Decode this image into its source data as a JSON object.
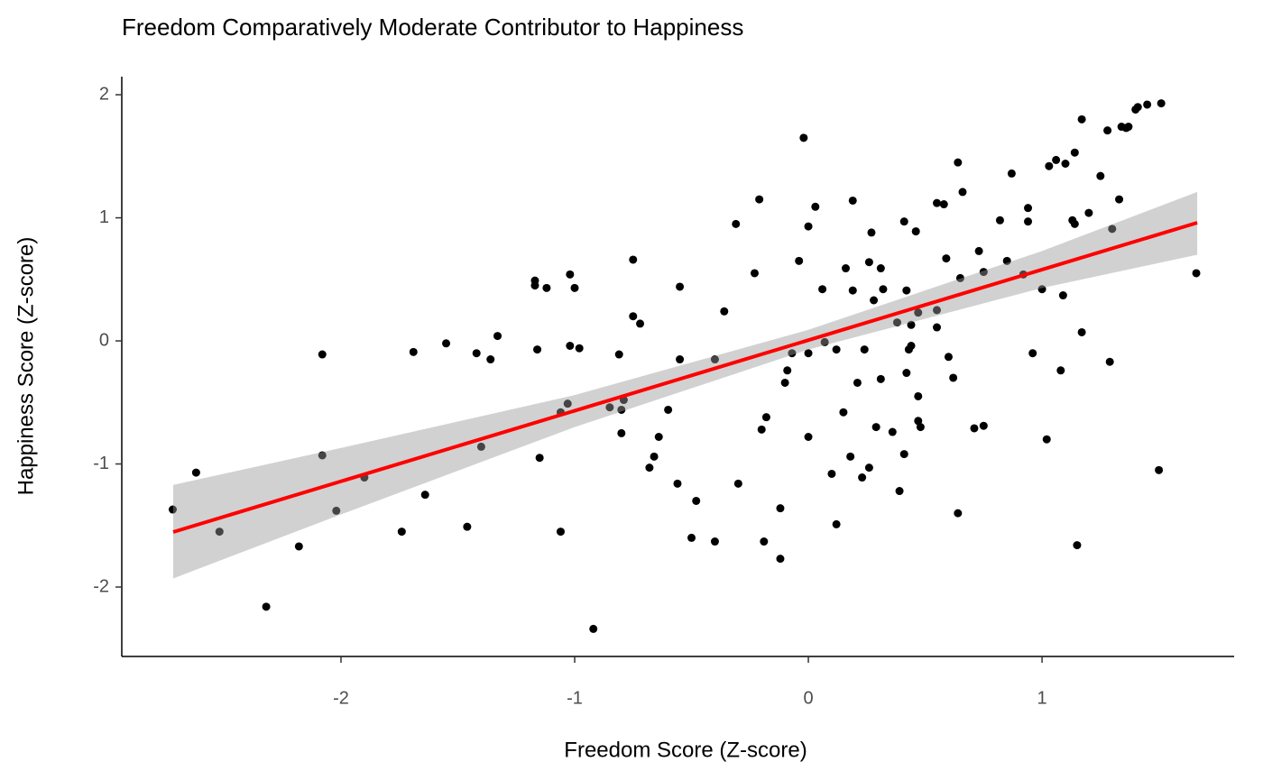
{
  "chart_data": {
    "type": "scatter",
    "title": "Freedom Comparatively Moderate Contributor to Happiness",
    "x_label": "Freedom Score (Z-score)",
    "y_label": "Happiness Score (Z-score)",
    "color": "#000000",
    "x": [
      -2.72,
      -2.62,
      -2.52,
      -2.32,
      -2.18,
      -2.08,
      -2.08,
      -2.02,
      -1.9,
      -1.74,
      -1.69,
      -1.64,
      -1.55,
      -1.46,
      -1.42,
      -1.4,
      -1.36,
      -1.33,
      -1.17,
      -1.17,
      -1.16,
      -1.15,
      -1.12,
      -1.06,
      -1.06,
      -1.03,
      -1.02,
      -1.02,
      -1.0,
      -0.98,
      -0.92,
      -0.85,
      -0.81,
      -0.8,
      -0.8,
      -0.79,
      -0.75,
      -0.75,
      -0.72,
      -0.68,
      -0.66,
      -0.64,
      -0.6,
      -0.56,
      -0.55,
      -0.55,
      -0.5,
      -0.48,
      -0.4,
      -0.4,
      -0.36,
      -0.31,
      -0.3,
      -0.23,
      -0.21,
      -0.2,
      -0.19,
      -0.18,
      -0.12,
      -0.12,
      -0.1,
      -0.09,
      -0.07,
      -0.04,
      -0.02,
      0.0,
      0.0,
      0.0,
      0.03,
      0.06,
      0.07,
      0.1,
      0.12,
      0.12,
      0.15,
      0.16,
      0.18,
      0.19,
      0.19,
      0.21,
      0.23,
      0.24,
      0.26,
      0.26,
      0.27,
      0.28,
      0.29,
      0.31,
      0.31,
      0.32,
      0.36,
      0.38,
      0.39,
      0.41,
      0.41,
      0.42,
      0.42,
      0.43,
      0.44,
      0.44,
      0.46,
      0.47,
      0.47,
      0.47,
      0.48,
      0.55,
      0.55,
      0.55,
      0.58,
      0.59,
      0.6,
      0.62,
      0.64,
      0.64,
      0.65,
      0.66,
      0.71,
      0.73,
      0.75,
      0.75,
      0.82,
      0.85,
      0.87,
      0.92,
      0.94,
      0.94,
      0.96,
      1.0,
      1.02,
      1.03,
      1.06,
      1.08,
      1.09,
      1.1,
      1.13,
      1.14,
      1.14,
      1.15,
      1.17,
      1.17,
      1.2,
      1.25,
      1.28,
      1.29,
      1.3,
      1.33,
      1.34,
      1.36,
      1.37,
      1.4,
      1.41,
      1.45,
      1.5,
      1.51,
      1.66
    ],
    "values": [
      -1.37,
      -1.07,
      -1.55,
      -2.16,
      -1.67,
      -0.11,
      -0.93,
      -1.38,
      -1.11,
      -1.55,
      -0.09,
      -1.25,
      -0.02,
      -1.51,
      -0.1,
      -0.86,
      -0.15,
      0.04,
      0.49,
      0.45,
      -0.07,
      -0.95,
      0.43,
      -1.55,
      -0.58,
      -0.51,
      0.54,
      -0.04,
      0.43,
      -0.06,
      -2.34,
      -0.54,
      -0.11,
      -0.75,
      -0.56,
      -0.48,
      0.66,
      0.2,
      0.14,
      -1.03,
      -0.94,
      -0.78,
      -0.56,
      -1.16,
      0.44,
      -0.15,
      -1.6,
      -1.3,
      -1.63,
      -0.15,
      0.24,
      0.95,
      -1.16,
      0.55,
      1.15,
      -0.72,
      -1.63,
      -0.62,
      -1.36,
      -1.77,
      -0.34,
      -0.24,
      -0.1,
      0.65,
      1.65,
      -0.1,
      0.93,
      -0.78,
      1.09,
      0.42,
      -0.01,
      -1.08,
      -1.49,
      -0.07,
      -0.58,
      0.59,
      -0.94,
      0.41,
      1.14,
      -0.34,
      -1.11,
      -0.07,
      0.64,
      -1.03,
      0.88,
      0.33,
      -0.7,
      0.59,
      -0.31,
      0.42,
      -0.74,
      0.15,
      -1.22,
      -0.92,
      0.97,
      -0.26,
      0.41,
      -0.07,
      0.13,
      -0.04,
      0.89,
      -0.65,
      -0.45,
      0.23,
      -0.7,
      1.12,
      0.11,
      0.25,
      1.11,
      0.67,
      -0.13,
      -0.3,
      -1.4,
      1.45,
      0.51,
      1.21,
      -0.71,
      0.73,
      -0.69,
      0.56,
      0.98,
      0.65,
      1.36,
      0.54,
      1.08,
      0.97,
      -0.1,
      0.42,
      -0.8,
      1.42,
      1.47,
      -0.24,
      0.37,
      1.44,
      0.98,
      1.53,
      0.95,
      -1.66,
      1.8,
      0.07,
      1.04,
      1.34,
      1.71,
      -0.17,
      0.91,
      1.15,
      1.74,
      1.73,
      1.74,
      1.88,
      1.9,
      1.92,
      -1.05,
      1.93,
      0.55
    ],
    "fit": {
      "x": [
        -2.718,
        1.664
      ],
      "y": [
        -1.553,
        0.96
      ],
      "color": "#ff0000"
    },
    "band": {
      "x": [
        -2.718,
        -2,
        -1,
        0,
        1,
        1.664
      ],
      "lower": [
        -1.93,
        -1.41,
        -0.7,
        -0.07,
        0.43,
        0.7
      ],
      "upper": [
        -1.17,
        -0.87,
        -0.44,
        0.09,
        0.73,
        1.21
      ],
      "color": "#999999"
    },
    "xlim": [
      -2.938,
      1.822
    ],
    "ylim": [
      -2.564,
      2.147
    ],
    "xticks": [
      -2,
      -1,
      0,
      1
    ],
    "yticks": [
      -2,
      -1,
      0,
      1,
      2
    ]
  }
}
